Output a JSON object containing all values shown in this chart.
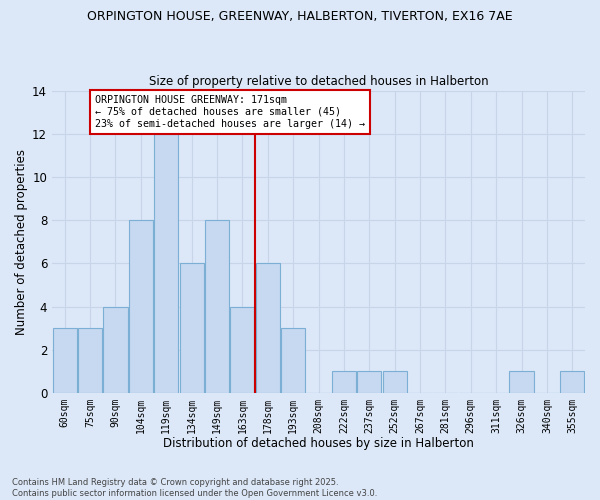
{
  "title_line1": "ORPINGTON HOUSE, GREENWAY, HALBERTON, TIVERTON, EX16 7AE",
  "title_line2": "Size of property relative to detached houses in Halberton",
  "xlabel": "Distribution of detached houses by size in Halberton",
  "ylabel": "Number of detached properties",
  "categories": [
    "60sqm",
    "75sqm",
    "90sqm",
    "104sqm",
    "119sqm",
    "134sqm",
    "149sqm",
    "163sqm",
    "178sqm",
    "193sqm",
    "208sqm",
    "222sqm",
    "237sqm",
    "252sqm",
    "267sqm",
    "281sqm",
    "296sqm",
    "311sqm",
    "326sqm",
    "340sqm",
    "355sqm"
  ],
  "values": [
    3,
    3,
    4,
    8,
    12,
    6,
    8,
    4,
    6,
    3,
    0,
    1,
    1,
    1,
    0,
    0,
    0,
    0,
    1,
    0,
    1
  ],
  "bar_color": "#c6d9f0",
  "bar_edge_color": "#7bafd4",
  "vline_color": "#cc0000",
  "vline_x_index": 8.0,
  "annotation_text": "ORPINGTON HOUSE GREENWAY: 171sqm\n← 75% of detached houses are smaller (45)\n23% of semi-detached houses are larger (14) →",
  "annotation_box_facecolor": "white",
  "annotation_box_edgecolor": "#cc0000",
  "ylim": [
    0,
    14
  ],
  "yticks": [
    0,
    2,
    4,
    6,
    8,
    10,
    12,
    14
  ],
  "grid_color": "#c8d4e8",
  "background_color": "#dce8f8",
  "footnote": "Contains HM Land Registry data © Crown copyright and database right 2025.\nContains public sector information licensed under the Open Government Licence v3.0."
}
